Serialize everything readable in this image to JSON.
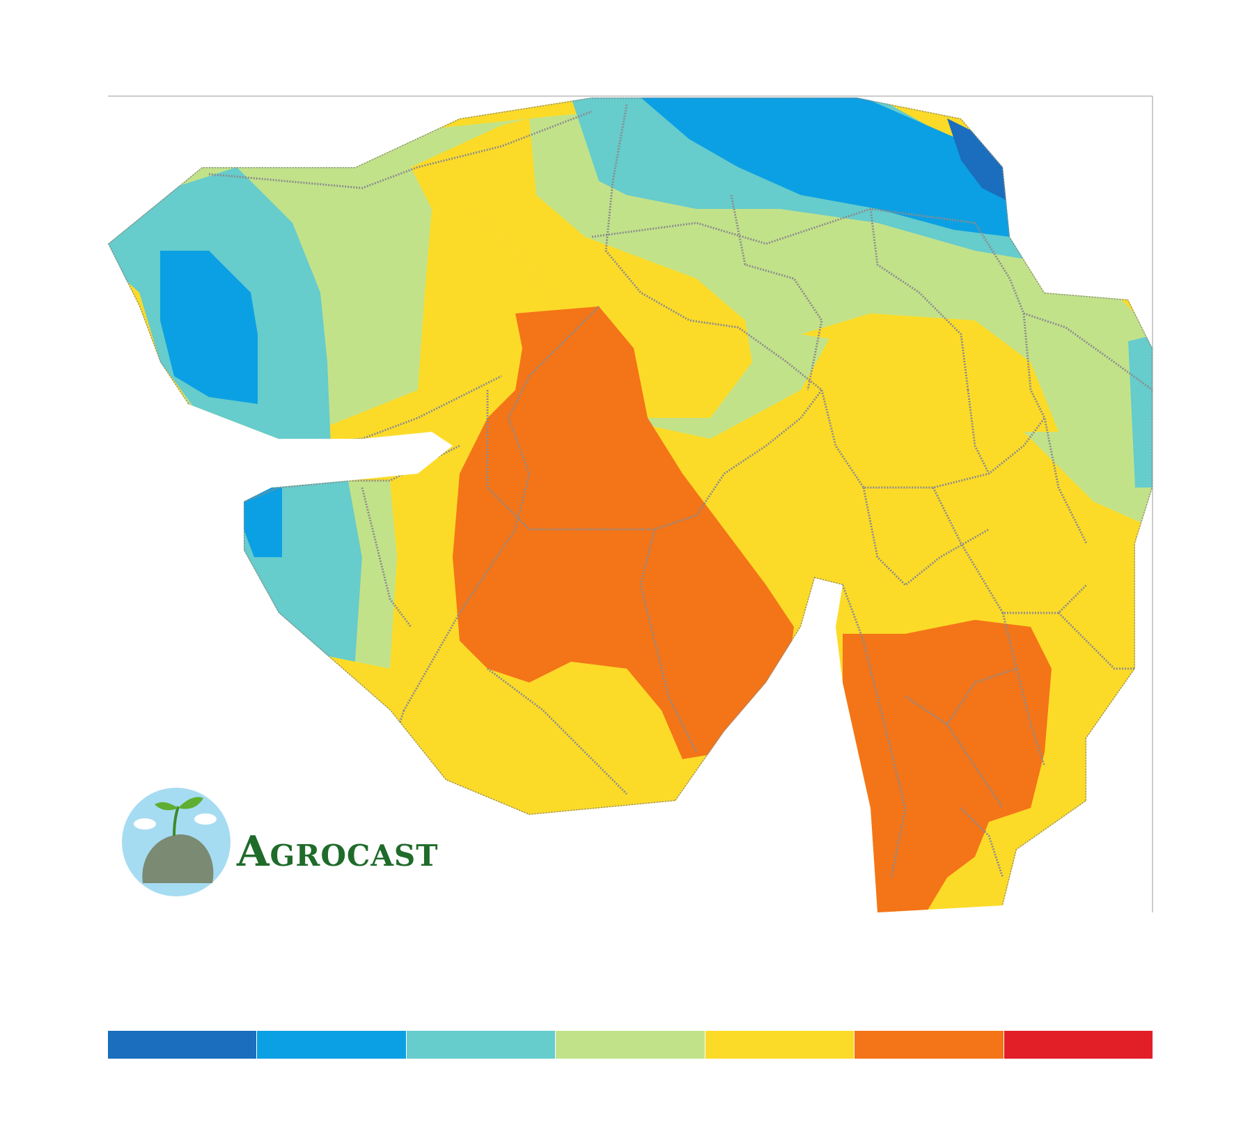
{
  "map": {
    "zones": [
      {
        "id": "kutch-west",
        "color_class": 3
      },
      {
        "id": "north-east",
        "color_class": 2
      },
      {
        "id": "central-saurashtra",
        "color_class": 6
      },
      {
        "id": "south-gujarat",
        "color_class": 6
      }
    ]
  },
  "brand": {
    "name": "Agrocast"
  },
  "legend": {
    "colors": [
      "#1a6ebd",
      "#0ba0e3",
      "#66cccc",
      "#c2e28a",
      "#fcdb28",
      "#f47418",
      "#e21f26"
    ]
  }
}
